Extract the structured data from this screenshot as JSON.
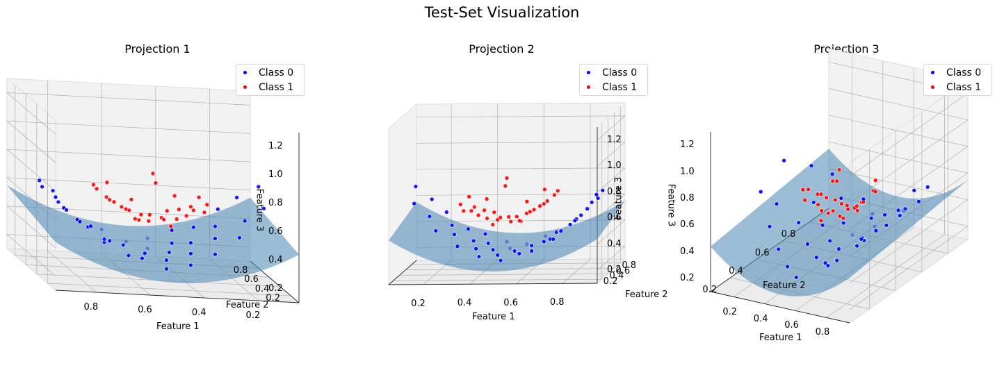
{
  "figure": {
    "title": "Test-Set Visualization",
    "panels": [
      {
        "title": "Projection 1",
        "xlabel": "Feature 1",
        "ylabel": "Feature 2",
        "zlabel": "Feature 3",
        "xticks": [
          "0.8",
          "0.6",
          "0.4",
          "0.2"
        ],
        "yticks": [
          "0.2",
          "0.4",
          "0.6",
          "0.8"
        ],
        "zticks": [
          "1.2",
          "1.0",
          "0.8",
          "0.6",
          "0.4",
          "0.2"
        ]
      },
      {
        "title": "Projection 2",
        "xlabel": "Feature 1",
        "ylabel": "Feature 2",
        "zlabel": "Feature 3",
        "xticks": [
          "0.2",
          "0.4",
          "0.6",
          "0.8"
        ],
        "yticks": [
          "0.8",
          "0.6",
          "0.4",
          "0.2"
        ],
        "zticks": [
          "1.2",
          "1.0",
          "0.8",
          "0.6",
          "0.4",
          "0.2"
        ]
      },
      {
        "title": "Projection 3",
        "xlabel": "Feature 1",
        "ylabel": "Feature 2",
        "zlabel": "Feature 3",
        "xticks": [
          "0.2",
          "0.4",
          "0.6",
          "0.8"
        ],
        "yticks": [
          "0.2",
          "0.4",
          "0.6",
          "0.8"
        ],
        "zticks": [
          "1.2",
          "1.0",
          "0.8",
          "0.6",
          "0.4",
          "0.2"
        ]
      }
    ],
    "legend": [
      {
        "label": "Class 0",
        "color": "#0000ff"
      },
      {
        "label": "Class 1",
        "color": "#ff0000"
      }
    ],
    "surface_color": "#4a86b5",
    "pane_color": "#f2f2f2",
    "grid_color": "#b0b0b0"
  },
  "chart_data": {
    "type": "scatter3d",
    "title": "Test-Set Visualization",
    "surface": {
      "description_formula": "z ≈ 1.2·(x − 0.5)² + 0.12·(y − 0.5) + 0.25"
    },
    "xlim": [
      0.05,
      0.95
    ],
    "ylim": [
      0.05,
      0.95
    ],
    "zlim": [
      0.1,
      1.3
    ],
    "series": [
      {
        "name": "Class 0",
        "color": "#0000ff",
        "points": [
          [
            0.1,
            0.55,
            0.75
          ],
          [
            0.12,
            0.35,
            0.66
          ],
          [
            0.15,
            0.7,
            0.62
          ],
          [
            0.18,
            0.4,
            0.55
          ],
          [
            0.2,
            0.8,
            0.5
          ],
          [
            0.22,
            0.3,
            0.46
          ],
          [
            0.25,
            0.6,
            0.44
          ],
          [
            0.28,
            0.45,
            0.4
          ],
          [
            0.3,
            0.75,
            0.38
          ],
          [
            0.32,
            0.25,
            0.35
          ],
          [
            0.35,
            0.55,
            0.33
          ],
          [
            0.36,
            0.85,
            0.32
          ],
          [
            0.38,
            0.4,
            0.3
          ],
          [
            0.4,
            0.65,
            0.29
          ],
          [
            0.42,
            0.2,
            0.28
          ],
          [
            0.44,
            0.5,
            0.27
          ],
          [
            0.46,
            0.8,
            0.27
          ],
          [
            0.48,
            0.35,
            0.26
          ],
          [
            0.5,
            0.6,
            0.26
          ],
          [
            0.52,
            0.15,
            0.26
          ],
          [
            0.54,
            0.45,
            0.27
          ],
          [
            0.56,
            0.7,
            0.27
          ],
          [
            0.58,
            0.3,
            0.28
          ],
          [
            0.6,
            0.55,
            0.29
          ],
          [
            0.62,
            0.85,
            0.3
          ],
          [
            0.64,
            0.25,
            0.31
          ],
          [
            0.66,
            0.5,
            0.33
          ],
          [
            0.68,
            0.75,
            0.35
          ],
          [
            0.7,
            0.4,
            0.37
          ],
          [
            0.72,
            0.6,
            0.39
          ],
          [
            0.74,
            0.2,
            0.41
          ],
          [
            0.76,
            0.8,
            0.44
          ],
          [
            0.78,
            0.45,
            0.47
          ],
          [
            0.8,
            0.65,
            0.5
          ],
          [
            0.82,
            0.3,
            0.53
          ],
          [
            0.84,
            0.55,
            0.57
          ],
          [
            0.86,
            0.75,
            0.61
          ],
          [
            0.88,
            0.4,
            0.65
          ],
          [
            0.9,
            0.6,
            0.7
          ],
          [
            0.92,
            0.25,
            0.74
          ]
        ]
      },
      {
        "name": "Class 1",
        "color": "#ff0000",
        "points": [
          [
            0.3,
            0.5,
            0.62
          ],
          [
            0.32,
            0.45,
            0.58
          ],
          [
            0.34,
            0.55,
            0.56
          ],
          [
            0.36,
            0.5,
            0.6
          ],
          [
            0.38,
            0.48,
            0.54
          ],
          [
            0.4,
            0.52,
            0.57
          ],
          [
            0.42,
            0.46,
            0.52
          ],
          [
            0.44,
            0.54,
            0.55
          ],
          [
            0.46,
            0.5,
            0.5
          ],
          [
            0.48,
            0.44,
            0.53
          ],
          [
            0.5,
            0.56,
            0.51
          ],
          [
            0.52,
            0.48,
            0.49
          ],
          [
            0.54,
            0.52,
            0.52
          ],
          [
            0.56,
            0.46,
            0.5
          ],
          [
            0.58,
            0.54,
            0.54
          ],
          [
            0.6,
            0.5,
            0.56
          ],
          [
            0.62,
            0.48,
            0.58
          ],
          [
            0.64,
            0.52,
            0.6
          ],
          [
            0.66,
            0.5,
            0.62
          ],
          [
            0.68,
            0.46,
            0.65
          ],
          [
            0.7,
            0.54,
            0.68
          ],
          [
            0.72,
            0.5,
            0.72
          ],
          [
            0.45,
            0.42,
            0.48
          ],
          [
            0.55,
            0.58,
            0.47
          ],
          [
            0.4,
            0.6,
            0.64
          ],
          [
            0.6,
            0.4,
            0.66
          ],
          [
            0.35,
            0.4,
            0.7
          ],
          [
            0.65,
            0.6,
            0.71
          ],
          [
            0.5,
            0.5,
            0.82
          ],
          [
            0.5,
            0.45,
            0.77
          ]
        ]
      }
    ]
  }
}
